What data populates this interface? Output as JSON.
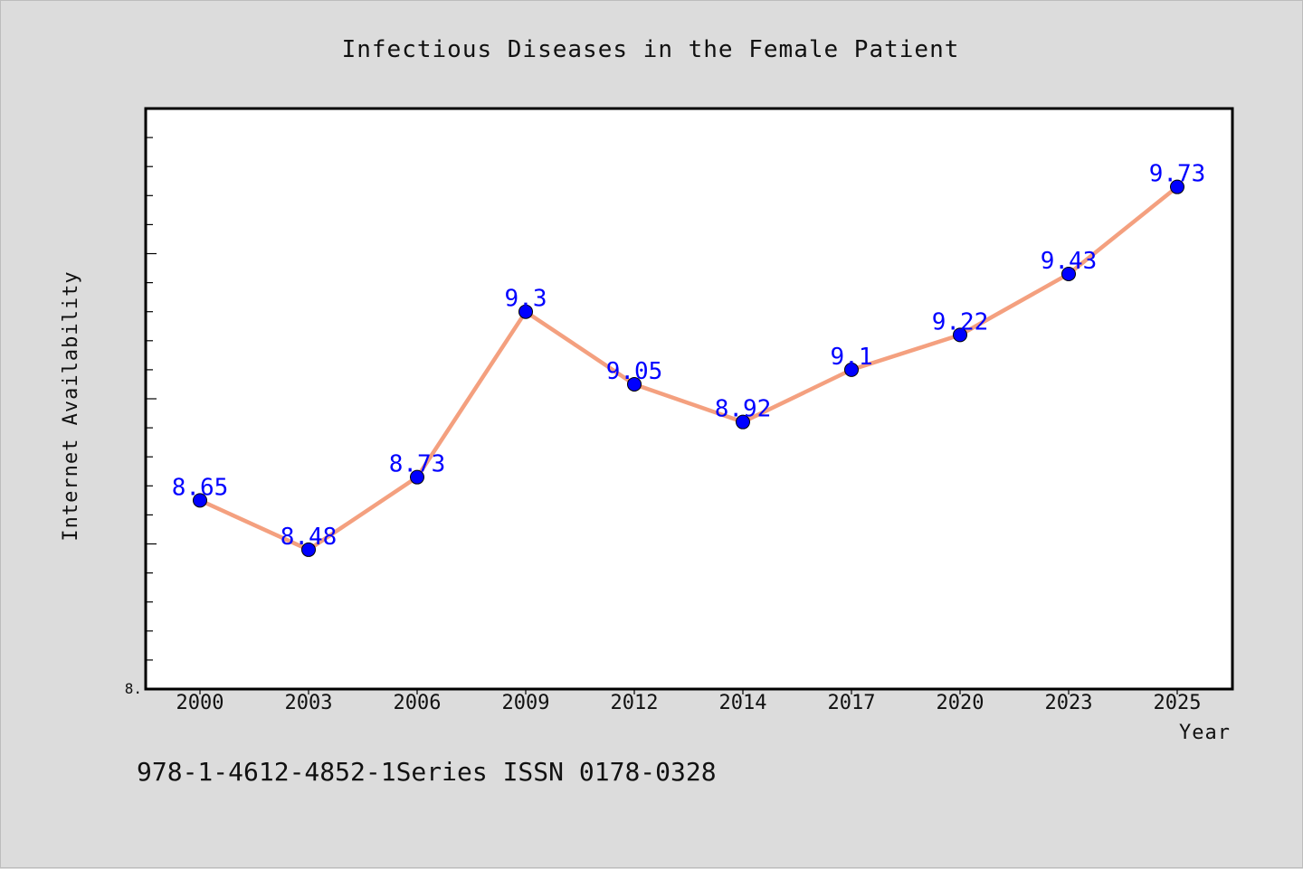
{
  "chart_data": {
    "type": "line",
    "title": "Infectious Diseases in the Female Patient",
    "xlabel": "Year",
    "ylabel": "Internet Availability",
    "categories": [
      "2000",
      "2003",
      "2006",
      "2009",
      "2012",
      "2014",
      "2017",
      "2020",
      "2023",
      "2025"
    ],
    "series": [
      {
        "values": [
          8.65,
          8.48,
          8.73,
          9.3,
          9.05,
          8.92,
          9.1,
          9.22,
          9.43,
          9.73
        ],
        "data_labels": [
          "8.65",
          "8.48",
          "8.73",
          "9.3",
          "9.05",
          "8.92",
          "9.1",
          "9.22",
          "9.43",
          "9.73"
        ]
      }
    ],
    "ylim": [
      8.0,
      10.0
    ],
    "y_tick_labels": [
      "8."
    ],
    "grid": false,
    "legend": "none",
    "colors": {
      "line": "#f4a07f",
      "marker": "#0000ff",
      "data_label": "#0000ff",
      "plot_background": "#ffffff",
      "page_background": "#dcdcdc"
    }
  },
  "footer": {
    "text": "978-1-4612-4852-1Series ISSN 0178-0328"
  }
}
